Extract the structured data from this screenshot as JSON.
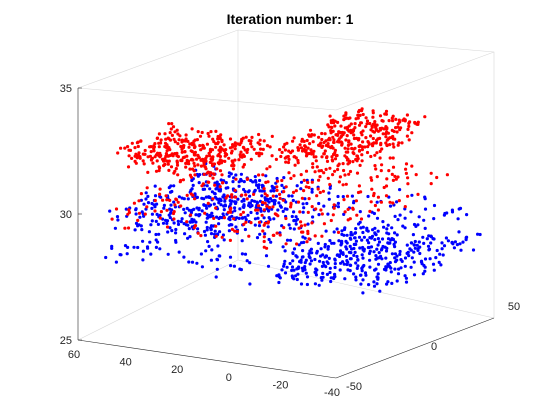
{
  "chart_data": {
    "type": "scatter3d",
    "title": "Iteration number: 1",
    "xlabel": "",
    "ylabel": "",
    "zlabel": "",
    "xlim": [
      -40,
      60
    ],
    "ylim": [
      -50,
      50
    ],
    "zlim": [
      25,
      35
    ],
    "x_ticks": [
      "60",
      "40",
      "20",
      "0",
      "-20",
      "-40"
    ],
    "y_ticks": [
      "-50",
      "0",
      "50"
    ],
    "z_ticks": [
      "25",
      "30",
      "35"
    ],
    "grid": false,
    "colors": {
      "series_a": "#0000ff",
      "series_b": "#ff0000",
      "box": "#d8d8d8",
      "axis": "#262626"
    },
    "series": [
      {
        "color": "#0000ff",
        "description_regions": [
          {
            "x_range": [
              -30,
              55
            ],
            "y_range": [
              -45,
              50
            ],
            "z": 28.4
          },
          {
            "x_range": [
              -35,
              10
            ],
            "y_range": [
              -10,
              50
            ],
            "z": 27.2
          },
          {
            "x_range": [
              10,
              55
            ],
            "y_range": [
              -40,
              20
            ],
            "z": 29.6
          }
        ]
      },
      {
        "color": "#ff0000",
        "description_regions": [
          {
            "x_range": [
              -25,
              55
            ],
            "y_range": [
              -45,
              50
            ],
            "z": 29.8
          },
          {
            "x_range": [
              20,
              58
            ],
            "y_range": [
              -30,
              5
            ],
            "z": 31.6
          },
          {
            "x_range": [
              -20,
              10
            ],
            "y_range": [
              -10,
              40
            ],
            "z": 31.9
          }
        ]
      }
    ]
  }
}
